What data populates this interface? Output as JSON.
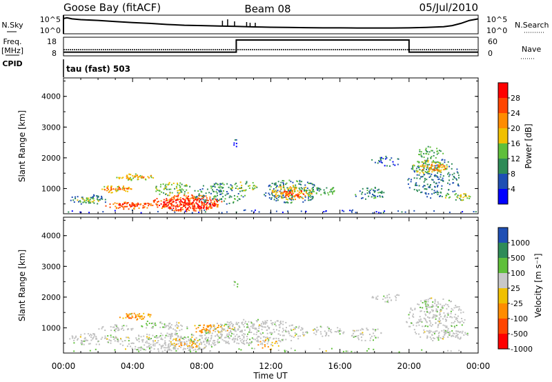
{
  "header": {
    "title": "Goose Bay (fitACF)",
    "beam": "Beam 08",
    "date": "05/Jul/2010"
  },
  "noise_panel": {
    "left_label": "N.Sky",
    "right_label": "N.Search",
    "left_ticks": [
      "10^5",
      "10^0"
    ],
    "right_ticks": [
      "10^5",
      "10^0"
    ]
  },
  "freq_panel": {
    "left_label": "Freq.",
    "left_unit": "[MHz]",
    "left_ticks": [
      "18",
      "8"
    ],
    "right_label": "Nave",
    "right_ticks": [
      "60",
      "0"
    ],
    "cpid_label": "CPID"
  },
  "cpid": "tau (fast) 503",
  "x_axis": {
    "label": "Time UT",
    "ticks": [
      "00:00",
      "04:00",
      "08:00",
      "12:00",
      "16:00",
      "20:00",
      "00:00"
    ]
  },
  "colors": {
    "power": [
      "#0000ff",
      "#1f4fb4",
      "#2e8b57",
      "#5fbf3a",
      "#f0c000",
      "#ff8c00",
      "#ff4500",
      "#ff0000"
    ],
    "velocity": [
      "#ff0000",
      "#ff4500",
      "#ff8c00",
      "#f0c000",
      "#c8c8c8",
      "#5fbf3a",
      "#2e8b57",
      "#1f4fb4"
    ],
    "ground_scatter": "#c0c0c0"
  },
  "chart_data": [
    {
      "type": "line",
      "panel": "noise",
      "x": [
        0.0,
        0.2,
        0.5,
        1.0,
        2.0,
        3.0,
        4.0,
        5.0,
        6.0,
        7.0,
        8.0,
        9.0,
        10.0,
        11.0,
        12.0,
        13.0,
        14.0,
        15.0,
        16.0,
        17.0,
        18.0,
        19.0,
        20.0,
        21.0,
        22.0,
        22.5,
        23.0,
        23.5,
        24.0
      ],
      "series": [
        {
          "values": [
            0.82,
            0.86,
            0.8,
            0.76,
            0.72,
            0.66,
            0.6,
            0.56,
            0.5,
            0.46,
            0.44,
            0.42,
            0.4,
            0.37,
            0.35,
            0.34,
            0.33,
            0.32,
            0.32,
            0.31,
            0.31,
            0.31,
            0.32,
            0.34,
            0.38,
            0.44,
            0.56,
            0.72,
            0.8
          ]
        }
      ],
      "ylim": [
        0,
        1
      ]
    },
    {
      "type": "line",
      "panel": "frequency",
      "x": [
        0,
        10.0,
        10.0,
        20.0,
        20.0,
        24
      ],
      "series": [
        {
          "values": [
            0.2,
            0.2,
            0.85,
            0.85,
            0.2,
            0.2
          ]
        }
      ],
      "ylim": [
        0,
        1
      ]
    },
    {
      "type": "heatmap",
      "panel": "power",
      "title": "",
      "xlabel": "",
      "ylabel": "Slant Range [km]",
      "xlim": [
        0,
        24
      ],
      "ylim": [
        180,
        4600
      ],
      "yticks": [
        1000,
        2000,
        3000,
        4000
      ],
      "colorbar": {
        "label": "Power [dB]",
        "ticks": [
          4,
          8,
          12,
          16,
          20,
          24,
          28
        ],
        "range": [
          0,
          32
        ]
      },
      "blobs": [
        {
          "x": 0.2,
          "w": 2.4,
          "y": 500,
          "h": 320,
          "v": 8,
          "d": 0.55
        },
        {
          "x": 0.6,
          "w": 1.8,
          "y": 570,
          "h": 160,
          "v": 15,
          "d": 0.85
        },
        {
          "x": 2.0,
          "w": 2.0,
          "y": 880,
          "h": 240,
          "v": 18,
          "d": 0.85
        },
        {
          "x": 2.2,
          "w": 1.6,
          "y": 950,
          "h": 120,
          "v": 24,
          "d": 0.9
        },
        {
          "x": 3.0,
          "w": 2.2,
          "y": 1280,
          "h": 220,
          "v": 17,
          "d": 0.8
        },
        {
          "x": 3.2,
          "w": 1.6,
          "y": 1330,
          "h": 120,
          "v": 23,
          "d": 0.85
        },
        {
          "x": 2.4,
          "w": 2.8,
          "y": 350,
          "h": 240,
          "v": 24,
          "d": 0.85
        },
        {
          "x": 3.0,
          "w": 2.0,
          "y": 420,
          "h": 140,
          "v": 28,
          "d": 0.95
        },
        {
          "x": 5.0,
          "w": 4.2,
          "y": 280,
          "h": 540,
          "v": 25,
          "d": 0.95
        },
        {
          "x": 5.6,
          "w": 3.2,
          "y": 320,
          "h": 380,
          "v": 30,
          "d": 1.0
        },
        {
          "x": 5.2,
          "w": 2.2,
          "y": 760,
          "h": 460,
          "v": 14,
          "d": 0.7
        },
        {
          "x": 7.5,
          "w": 3.0,
          "y": 500,
          "h": 700,
          "v": 10,
          "d": 0.55
        },
        {
          "x": 9.6,
          "w": 1.6,
          "y": 950,
          "h": 300,
          "v": 14,
          "d": 0.65
        },
        {
          "x": 11.5,
          "w": 3.4,
          "y": 550,
          "h": 750,
          "v": 9,
          "d": 0.6
        },
        {
          "x": 12.0,
          "w": 2.4,
          "y": 650,
          "h": 480,
          "v": 19,
          "d": 0.85
        },
        {
          "x": 12.6,
          "w": 1.4,
          "y": 740,
          "h": 240,
          "v": 26,
          "d": 0.9
        },
        {
          "x": 14.0,
          "w": 1.8,
          "y": 800,
          "h": 300,
          "v": 12,
          "d": 0.6
        },
        {
          "x": 16.8,
          "w": 1.8,
          "y": 650,
          "h": 420,
          "v": 9,
          "d": 0.65
        },
        {
          "x": 17.8,
          "w": 1.8,
          "y": 1750,
          "h": 350,
          "v": 7,
          "d": 0.45
        },
        {
          "x": 19.8,
          "w": 3.2,
          "y": 700,
          "h": 1300,
          "v": 8,
          "d": 0.45
        },
        {
          "x": 20.0,
          "w": 2.2,
          "y": 1500,
          "h": 450,
          "v": 16,
          "d": 0.8
        },
        {
          "x": 20.6,
          "w": 1.6,
          "y": 1580,
          "h": 250,
          "v": 23,
          "d": 0.85
        },
        {
          "x": 20.4,
          "w": 1.6,
          "y": 2000,
          "h": 400,
          "v": 12,
          "d": 0.6
        },
        {
          "x": 22.0,
          "w": 1.8,
          "y": 620,
          "h": 260,
          "v": 15,
          "d": 0.75
        },
        {
          "x": 0.0,
          "w": 24.0,
          "y": 200,
          "h": 140,
          "v": 5,
          "d": 0.18
        },
        {
          "x": 9.8,
          "w": 0.4,
          "y": 2300,
          "h": 350,
          "v": 5,
          "d": 0.35
        }
      ]
    },
    {
      "type": "heatmap",
      "panel": "velocity",
      "title": "",
      "xlabel": "Time UT",
      "ylabel": "Slant Range [km]",
      "xlim": [
        0,
        24
      ],
      "ylim": [
        180,
        4600
      ],
      "yticks": [
        1000,
        2000,
        3000,
        4000
      ],
      "colorbar": {
        "label": "Velocity [m s⁻¹]",
        "ticks": [
          1000,
          500,
          100,
          25,
          -25,
          -100,
          -500,
          -1000
        ]
      },
      "blobs": [
        {
          "x": 0.2,
          "w": 3.0,
          "y": 450,
          "h": 400,
          "v": 0,
          "d": 0.7
        },
        {
          "x": 2.0,
          "w": 2.0,
          "y": 880,
          "h": 240,
          "v": 0,
          "d": 0.75
        },
        {
          "x": 3.0,
          "w": 2.2,
          "y": 1280,
          "h": 220,
          "v": -110,
          "d": 0.85
        },
        {
          "x": 3.3,
          "w": 1.4,
          "y": 1330,
          "h": 110,
          "v": -600,
          "d": 0.6
        },
        {
          "x": 4.4,
          "w": 1.6,
          "y": 1000,
          "h": 260,
          "v": 40,
          "d": 0.6
        },
        {
          "x": 3.0,
          "w": 6.0,
          "y": 250,
          "h": 600,
          "v": 0,
          "d": 0.85
        },
        {
          "x": 5.8,
          "w": 1.4,
          "y": 900,
          "h": 300,
          "v": 0,
          "d": 0.75
        },
        {
          "x": 7.2,
          "w": 2.4,
          "y": 850,
          "h": 300,
          "v": -110,
          "d": 0.85
        },
        {
          "x": 6.0,
          "w": 2.0,
          "y": 350,
          "h": 350,
          "v": -110,
          "d": 0.45
        },
        {
          "x": 8.0,
          "w": 6.0,
          "y": 450,
          "h": 850,
          "v": 0,
          "d": 0.7
        },
        {
          "x": 11.0,
          "w": 1.5,
          "y": 300,
          "h": 400,
          "v": -110,
          "d": 0.3
        },
        {
          "x": 14.0,
          "w": 2.2,
          "y": 700,
          "h": 400,
          "v": 0,
          "d": 0.5
        },
        {
          "x": 16.6,
          "w": 1.8,
          "y": 600,
          "h": 450,
          "v": 0,
          "d": 0.6
        },
        {
          "x": 17.8,
          "w": 1.8,
          "y": 1850,
          "h": 300,
          "v": 0,
          "d": 0.5
        },
        {
          "x": 19.8,
          "w": 3.4,
          "y": 600,
          "h": 1400,
          "v": 0,
          "d": 0.55
        },
        {
          "x": 20.4,
          "w": 1.6,
          "y": 1500,
          "h": 400,
          "v": 60,
          "d": 0.45
        },
        {
          "x": 22.0,
          "w": 1.4,
          "y": 650,
          "h": 300,
          "v": 0,
          "d": 0.7
        },
        {
          "x": 0.0,
          "w": 24.0,
          "y": 200,
          "h": 160,
          "v": 30,
          "d": 0.12
        },
        {
          "x": 9.8,
          "w": 0.4,
          "y": 2300,
          "h": 350,
          "v": 60,
          "d": 0.3
        }
      ]
    }
  ]
}
